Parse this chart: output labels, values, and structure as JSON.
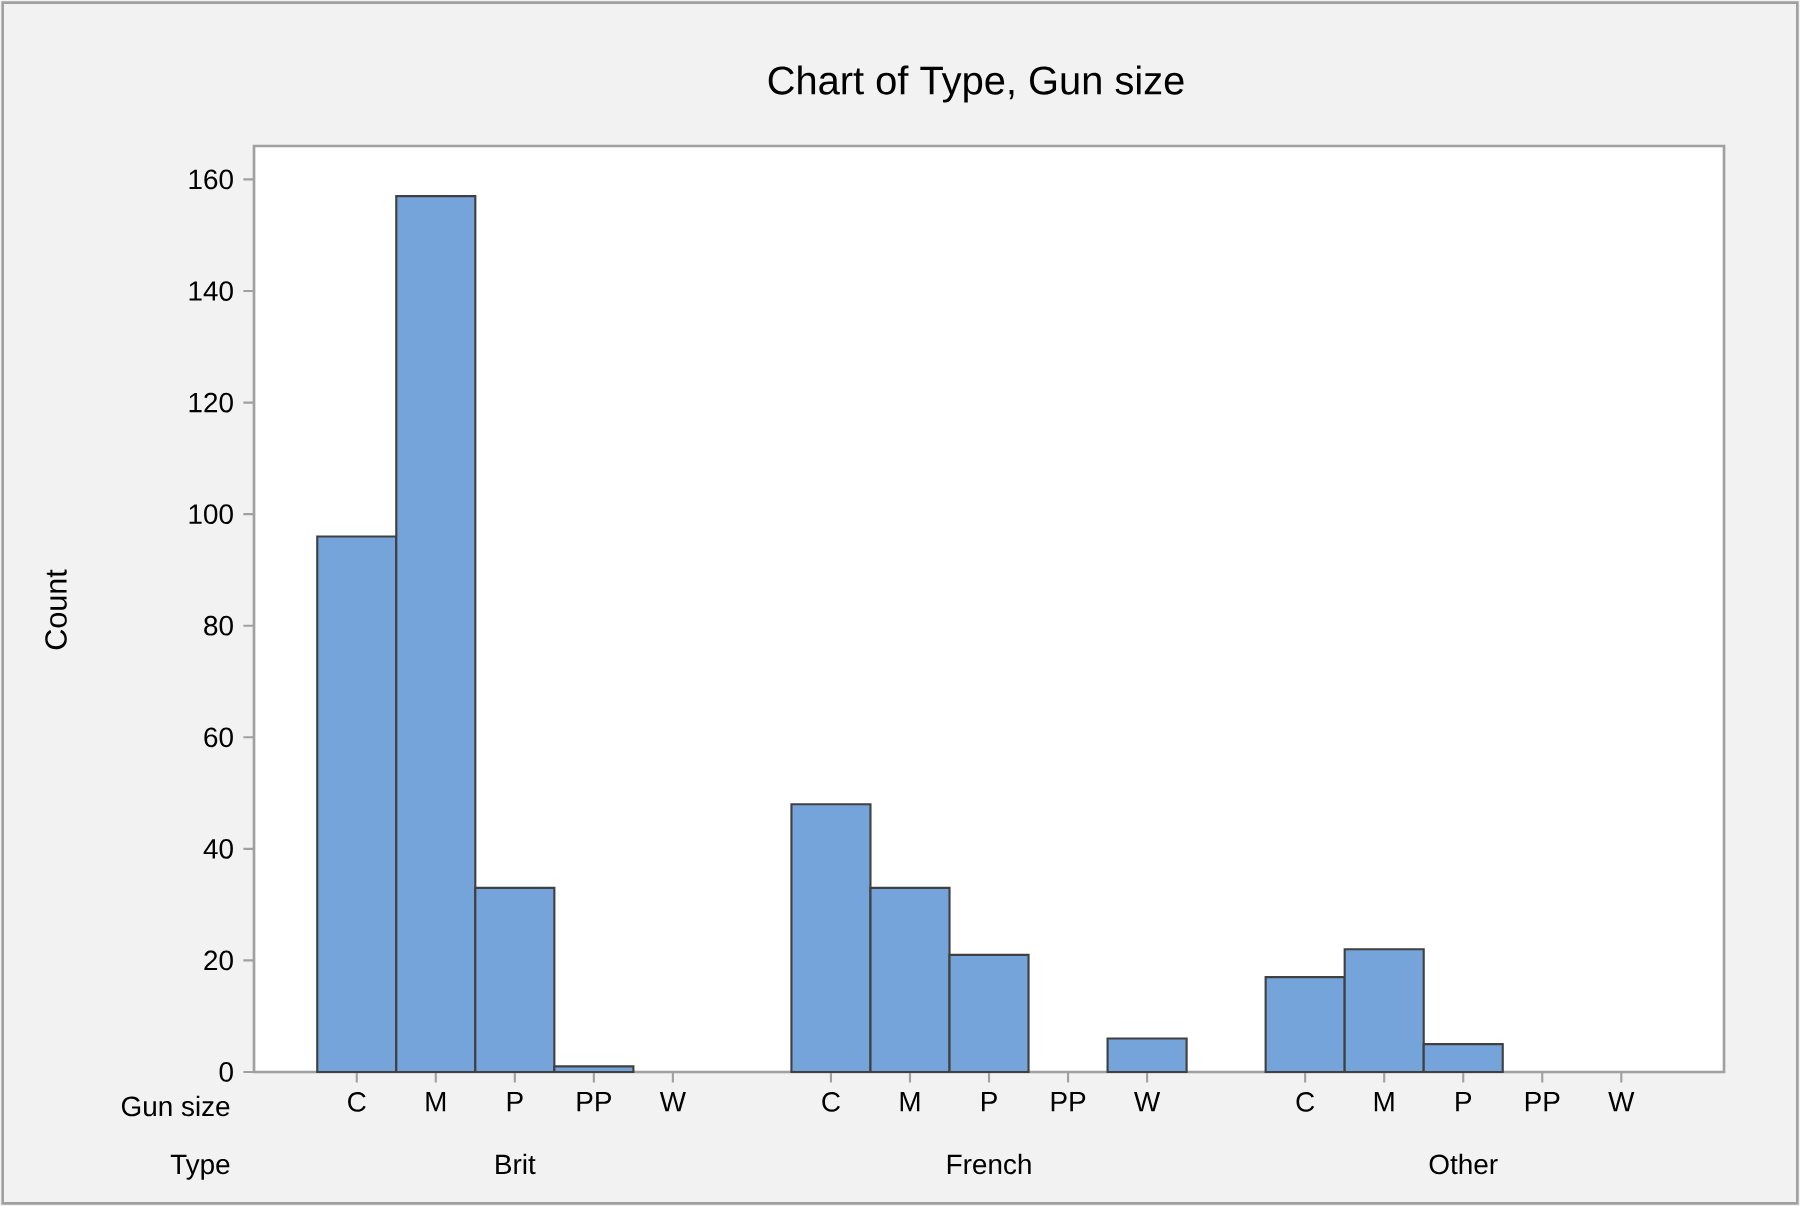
{
  "chart_data": {
    "type": "bar",
    "title": "Chart of Type, Gun size",
    "ylabel": "Count",
    "categories": [
      "C",
      "M",
      "P",
      "PP",
      "W",
      null,
      "C",
      "M",
      "P",
      "PP",
      "W",
      null,
      "C",
      "M",
      "P",
      "PP",
      "W"
    ],
    "values": [
      96,
      157,
      33,
      1,
      0,
      null,
      48,
      33,
      21,
      0,
      6,
      null,
      17,
      22,
      5,
      0,
      0
    ],
    "color": "#74a4da",
    "annotations": [
      "Gun size",
      "Type",
      "Brit",
      "French",
      "Other"
    ],
    "ylim": [
      0,
      166
    ],
    "yticks": [
      0,
      20,
      40,
      60,
      80,
      100,
      120,
      140,
      160
    ],
    "grid": false
  }
}
